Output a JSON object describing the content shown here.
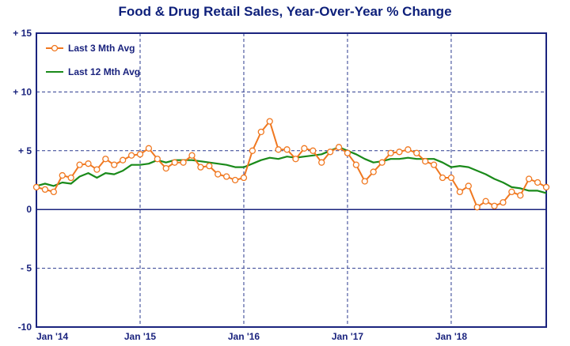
{
  "chart_data": {
    "type": "line",
    "title": "Food & Drug Retail Sales, Year-Over-Year % Change",
    "xlabel": "",
    "ylabel": "",
    "xlim": [
      "2014-01",
      "2018-12"
    ],
    "ylim": [
      -10,
      15
    ],
    "y_ticks": [
      {
        "value": 15,
        "label": "+ 15"
      },
      {
        "value": 10,
        "label": "+ 10"
      },
      {
        "value": 5,
        "label": "+ 5"
      },
      {
        "value": 0,
        "label": "0"
      },
      {
        "value": -5,
        "label": "- 5"
      },
      {
        "value": -10,
        "label": "-10"
      }
    ],
    "x_ticks": [
      {
        "value": "2014-01",
        "label": "Jan '14"
      },
      {
        "value": "2015-01",
        "label": "Jan '15"
      },
      {
        "value": "2016-01",
        "label": "Jan '16"
      },
      {
        "value": "2017-01",
        "label": "Jan '17"
      },
      {
        "value": "2018-01",
        "label": "Jan '18"
      }
    ],
    "grid": true,
    "legend_position": "top-left",
    "series": [
      {
        "name": "Last 3 Mth Avg",
        "color": "#f07820",
        "marker": "circle",
        "x": [
          "2014-01",
          "2014-02",
          "2014-03",
          "2014-04",
          "2014-05",
          "2014-06",
          "2014-07",
          "2014-08",
          "2014-09",
          "2014-10",
          "2014-11",
          "2014-12",
          "2015-01",
          "2015-02",
          "2015-03",
          "2015-04",
          "2015-05",
          "2015-06",
          "2015-07",
          "2015-08",
          "2015-09",
          "2015-10",
          "2015-11",
          "2015-12",
          "2016-01",
          "2016-02",
          "2016-03",
          "2016-04",
          "2016-05",
          "2016-06",
          "2016-07",
          "2016-08",
          "2016-09",
          "2016-10",
          "2016-11",
          "2016-12",
          "2017-01",
          "2017-02",
          "2017-03",
          "2017-04",
          "2017-05",
          "2017-06",
          "2017-07",
          "2017-08",
          "2017-09",
          "2017-10",
          "2017-11",
          "2017-12",
          "2018-01",
          "2018-02",
          "2018-03",
          "2018-04",
          "2018-05",
          "2018-06",
          "2018-07",
          "2018-08",
          "2018-09",
          "2018-10",
          "2018-11",
          "2018-12"
        ],
        "values": [
          1.9,
          1.7,
          1.5,
          2.9,
          2.7,
          3.8,
          3.9,
          3.4,
          4.3,
          3.8,
          4.2,
          4.6,
          4.7,
          5.2,
          4.3,
          3.5,
          4.0,
          4.0,
          4.6,
          3.6,
          3.7,
          3.0,
          2.8,
          2.5,
          2.7,
          5.0,
          6.6,
          7.5,
          5.1,
          5.1,
          4.3,
          5.2,
          5.0,
          4.0,
          4.9,
          5.3,
          4.8,
          3.8,
          2.4,
          3.2,
          4.0,
          4.8,
          4.9,
          5.1,
          4.8,
          4.1,
          3.8,
          2.7,
          2.7,
          1.5,
          2.0,
          0.2,
          0.7,
          0.3,
          0.6,
          1.5,
          1.2,
          2.6,
          2.3,
          1.9
        ]
      },
      {
        "name": "Last 12 Mth Avg",
        "color": "#1a8a1a",
        "marker": "none",
        "x": [
          "2014-01",
          "2014-02",
          "2014-03",
          "2014-04",
          "2014-05",
          "2014-06",
          "2014-07",
          "2014-08",
          "2014-09",
          "2014-10",
          "2014-11",
          "2014-12",
          "2015-01",
          "2015-02",
          "2015-03",
          "2015-04",
          "2015-05",
          "2015-06",
          "2015-07",
          "2015-08",
          "2015-09",
          "2015-10",
          "2015-11",
          "2015-12",
          "2016-01",
          "2016-02",
          "2016-03",
          "2016-04",
          "2016-05",
          "2016-06",
          "2016-07",
          "2016-08",
          "2016-09",
          "2016-10",
          "2016-11",
          "2016-12",
          "2017-01",
          "2017-02",
          "2017-03",
          "2017-04",
          "2017-05",
          "2017-06",
          "2017-07",
          "2017-08",
          "2017-09",
          "2017-10",
          "2017-11",
          "2017-12",
          "2018-01",
          "2018-02",
          "2018-03",
          "2018-04",
          "2018-05",
          "2018-06",
          "2018-07",
          "2018-08",
          "2018-09",
          "2018-10",
          "2018-11",
          "2018-12"
        ],
        "values": [
          2.0,
          2.2,
          2.0,
          2.3,
          2.2,
          2.8,
          3.1,
          2.7,
          3.1,
          3.0,
          3.3,
          3.8,
          3.8,
          3.9,
          4.2,
          4.0,
          4.2,
          4.2,
          4.2,
          4.1,
          4.0,
          3.9,
          3.8,
          3.6,
          3.6,
          3.9,
          4.2,
          4.4,
          4.3,
          4.5,
          4.4,
          4.5,
          4.6,
          4.7,
          5.0,
          5.3,
          5.0,
          4.7,
          4.3,
          4.0,
          4.1,
          4.3,
          4.3,
          4.4,
          4.3,
          4.3,
          4.3,
          4.0,
          3.6,
          3.7,
          3.6,
          3.3,
          3.0,
          2.6,
          2.3,
          1.9,
          1.8,
          1.6,
          1.6,
          1.4
        ]
      }
    ]
  }
}
